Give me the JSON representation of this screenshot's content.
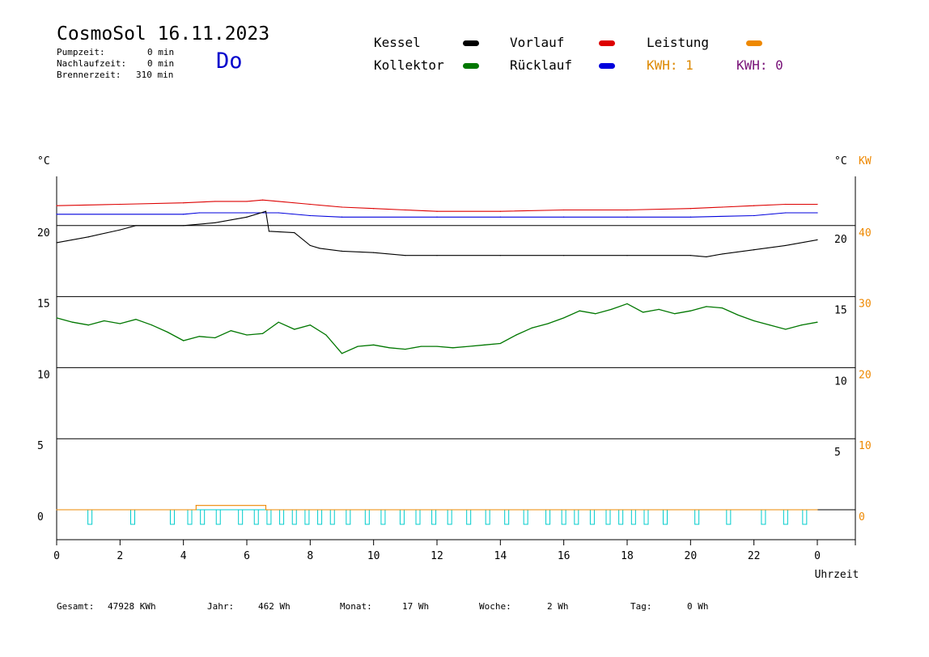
{
  "header": {
    "title": "CosmoSol 16.11.2023",
    "day": "Do",
    "pump_label": "Pumpzeit:",
    "pump_value": "0 min",
    "after_label": "Nachlaufzeit:",
    "after_value": "0 min",
    "burner_label": "Brennerzeit:",
    "burner_value": "310 min"
  },
  "legend": {
    "kessel": "Kessel",
    "kollektor": "Kollektor",
    "vorlauf": "Vorlauf",
    "ruecklauf": "Rücklauf",
    "leistung": "Leistung",
    "kwh1": "KWH: 1",
    "kwh2": "KWH: 0",
    "colors": {
      "kessel": "#000000",
      "kollektor": "#007700",
      "vorlauf": "#dd0000",
      "ruecklauf": "#0000dd",
      "leistung": "#ee8800",
      "kwh2": "#771177",
      "cyan": "#00cccc"
    }
  },
  "footer": {
    "gesamt_label": "Gesamt:",
    "gesamt_value": "47928 KWh",
    "jahr_label": "Jahr:",
    "jahr_value": "462 Wh",
    "monat_label": "Monat:",
    "monat_value": "17 Wh",
    "woche_label": "Woche:",
    "woche_value": "2 Wh",
    "tag_label": "Tag:",
    "tag_value": "0 Wh"
  },
  "chart_data": {
    "type": "line",
    "xlabel": "Uhrzeit",
    "ylabel_left": "°C",
    "ylabel_right_c": "°C",
    "ylabel_right_kw": "KW",
    "x_ticks": [
      "0",
      "2",
      "4",
      "6",
      "8",
      "10",
      "12",
      "14",
      "16",
      "18",
      "20",
      "22",
      "0"
    ],
    "y_ticks_left": [
      "0",
      "5",
      "10",
      "15",
      "20"
    ],
    "y_ticks_right_c": [
      "5",
      "10",
      "15",
      "20"
    ],
    "y_ticks_right_kw": [
      "0",
      "10",
      "20",
      "30",
      "40"
    ],
    "xlim": [
      0,
      24
    ],
    "ylim": [
      -2,
      24
    ],
    "grid": "horizontal",
    "series": [
      {
        "name": "Vorlauf",
        "color_key": "vorlauf",
        "x": [
          0,
          2,
          4,
          5,
          6,
          6.5,
          7,
          8,
          9,
          10,
          11,
          12,
          14,
          16,
          18,
          20,
          21,
          22,
          23,
          24
        ],
        "y": [
          21.4,
          21.5,
          21.6,
          21.7,
          21.7,
          21.8,
          21.7,
          21.5,
          21.3,
          21.2,
          21.1,
          21.0,
          21.0,
          21.1,
          21.1,
          21.2,
          21.3,
          21.4,
          21.5,
          21.5
        ]
      },
      {
        "name": "Rücklauf",
        "color_key": "ruecklauf",
        "x": [
          0,
          4,
          4.5,
          6,
          7,
          8,
          9,
          12,
          14,
          16,
          18,
          20,
          22,
          23,
          24
        ],
        "y": [
          20.8,
          20.8,
          20.9,
          20.9,
          20.9,
          20.7,
          20.6,
          20.6,
          20.6,
          20.6,
          20.6,
          20.6,
          20.7,
          20.9,
          20.9
        ]
      },
      {
        "name": "Kessel",
        "color_key": "kessel",
        "x": [
          0,
          1,
          2,
          2.5,
          4,
          5,
          6,
          6.6,
          6.7,
          7.5,
          8,
          8.3,
          9,
          10,
          11,
          12,
          14,
          16,
          18,
          20,
          20.5,
          21,
          22,
          23,
          24
        ],
        "y": [
          18.8,
          19.2,
          19.7,
          20.0,
          20.0,
          20.2,
          20.6,
          21.0,
          19.6,
          19.5,
          18.6,
          18.4,
          18.2,
          18.1,
          17.9,
          17.9,
          17.9,
          17.9,
          17.9,
          17.9,
          17.8,
          18.0,
          18.3,
          18.6,
          19.0
        ]
      },
      {
        "name": "Kollektor",
        "color_key": "kollektor",
        "x": [
          0,
          0.5,
          1,
          1.5,
          2,
          2.5,
          3,
          3.5,
          4,
          4.5,
          5,
          5.5,
          6,
          6.5,
          7,
          7.5,
          8,
          8.5,
          9,
          9.5,
          10,
          10.5,
          11,
          11.5,
          12,
          12.5,
          13,
          13.5,
          14,
          14.5,
          15,
          15.5,
          16,
          16.5,
          17,
          17.5,
          18,
          18.5,
          19,
          19.5,
          20,
          20.5,
          21,
          21.5,
          22,
          22.5,
          23,
          23.5,
          24
        ],
        "y": [
          13.5,
          13.2,
          13.0,
          13.3,
          13.1,
          13.4,
          13.0,
          12.5,
          11.9,
          12.2,
          12.1,
          12.6,
          12.3,
          12.4,
          13.2,
          12.7,
          13.0,
          12.3,
          11.0,
          11.5,
          11.6,
          11.4,
          11.3,
          11.5,
          11.5,
          11.4,
          11.5,
          11.6,
          11.7,
          12.3,
          12.8,
          13.1,
          13.5,
          14.0,
          13.8,
          14.1,
          14.5,
          13.9,
          14.1,
          13.8,
          14.0,
          14.3,
          14.2,
          13.7,
          13.3,
          13.0,
          12.7,
          13.0,
          13.2
        ]
      },
      {
        "name": "Leistung",
        "color_key": "leistung",
        "x": [
          0,
          4.4,
          4.4,
          6.6,
          6.6,
          24
        ],
        "y": [
          0,
          0,
          0.3,
          0.3,
          0,
          0
        ]
      }
    ],
    "cyan_pulses": [
      1.05,
      2.4,
      3.65,
      4.2,
      4.6,
      5.1,
      5.8,
      6.3,
      6.7,
      7.1,
      7.5,
      7.9,
      8.3,
      8.7,
      9.2,
      9.8,
      10.3,
      10.9,
      11.4,
      11.9,
      12.4,
      13.0,
      13.6,
      14.2,
      14.8,
      15.5,
      16.0,
      16.4,
      16.9,
      17.4,
      17.8,
      18.2,
      18.6,
      19.2,
      20.2,
      21.2,
      22.3,
      23.0,
      23.6
    ]
  }
}
